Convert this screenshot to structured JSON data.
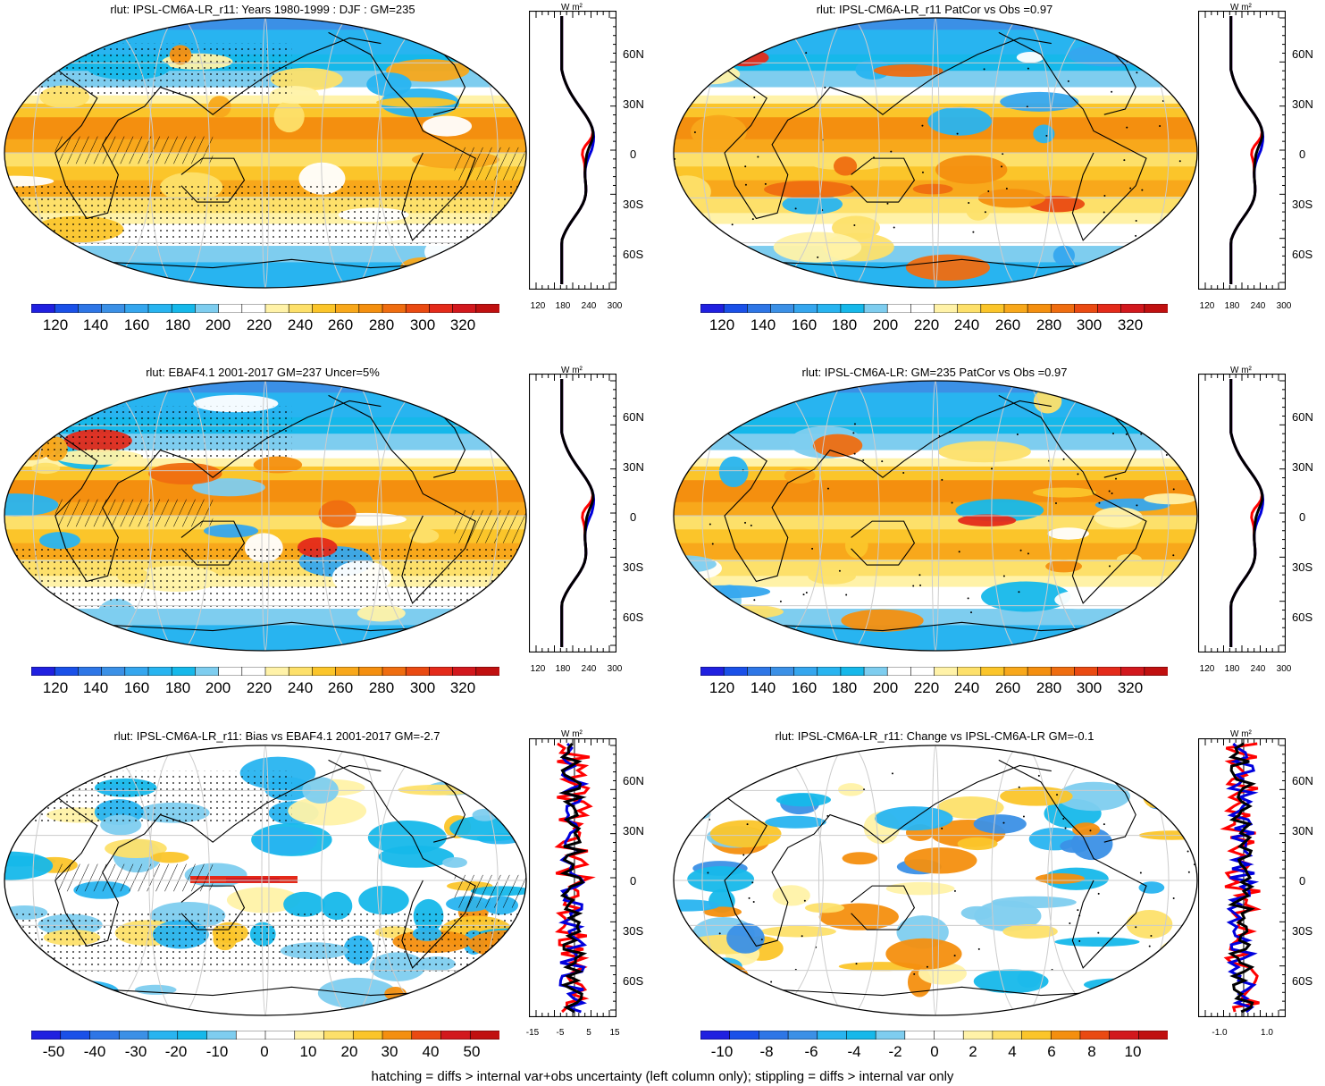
{
  "footer": "hatching = diffs > internal var+obs uncertainty (left column only); stippling = diffs > internal var only",
  "unit": "W m²",
  "lat_labels": [
    "60N",
    "30N",
    "0",
    "30S",
    "60S"
  ],
  "colors": {
    "abs_scale": [
      "#2020e0",
      "#1a50e8",
      "#2e76e6",
      "#3b90e6",
      "#35a6ee",
      "#28b4f0",
      "#16b8ea",
      "#7ecdef",
      "#ffffff",
      "#ffffff",
      "#fff2a8",
      "#fde06a",
      "#fbc52a",
      "#f8a81b",
      "#f48f0f",
      "#ef6d10",
      "#ea4a12",
      "#e42a1a",
      "#d2181d",
      "#c01010"
    ],
    "model": "#ff0000",
    "obs": "#0000dd",
    "ensemble": "#000000"
  },
  "panels": [
    {
      "title": "rlut: IPSL-CM6A-LR_r11: Years 1980-1999 : DJF : GM=235",
      "kind": "abs",
      "cbar_labels": [
        "120",
        "140",
        "160",
        "180",
        "200",
        "220",
        "240",
        "260",
        "280",
        "300",
        "320"
      ],
      "zonal_ticks": [
        "120",
        "180",
        "240",
        "300"
      ]
    },
    {
      "title": "rlut: IPSL-CM6A-LR_r11 PatCor vs Obs =0.97",
      "kind": "abs",
      "cbar_labels": [
        "120",
        "140",
        "160",
        "180",
        "200",
        "220",
        "240",
        "260",
        "280",
        "300",
        "320"
      ],
      "zonal_ticks": [
        "120",
        "180",
        "240",
        "300"
      ]
    },
    {
      "title": "rlut: EBAF4.1 2001-2017 GM=237 Uncer=5%",
      "kind": "abs",
      "cbar_labels": [
        "120",
        "140",
        "160",
        "180",
        "200",
        "220",
        "240",
        "260",
        "280",
        "300",
        "320"
      ],
      "zonal_ticks": [
        "120",
        "180",
        "240",
        "300"
      ]
    },
    {
      "title": "rlut: IPSL-CM6A-LR: GM=235 PatCor vs Obs =0.97",
      "kind": "abs",
      "cbar_labels": [
        "120",
        "140",
        "160",
        "180",
        "200",
        "220",
        "240",
        "260",
        "280",
        "300",
        "320"
      ],
      "zonal_ticks": [
        "120",
        "180",
        "240",
        "300"
      ]
    },
    {
      "title": "rlut: IPSL-CM6A-LR_r11: Bias vs EBAF4.1 2001-2017 GM=-2.7",
      "kind": "bias",
      "cbar_labels": [
        "-50",
        "-40",
        "-30",
        "-20",
        "-10",
        "0",
        "10",
        "20",
        "30",
        "40",
        "50"
      ],
      "zonal_ticks": [
        "-15",
        "-5",
        "5",
        "15"
      ]
    },
    {
      "title": "rlut: IPSL-CM6A-LR_r11: Change vs IPSL-CM6A-LR GM=-0.1",
      "kind": "change",
      "cbar_labels": [
        "-10",
        "-8",
        "-6",
        "-4",
        "-2",
        "0",
        "2",
        "4",
        "6",
        "8",
        "10"
      ],
      "zonal_ticks": [
        "-1.0",
        "1.0"
      ]
    }
  ]
}
